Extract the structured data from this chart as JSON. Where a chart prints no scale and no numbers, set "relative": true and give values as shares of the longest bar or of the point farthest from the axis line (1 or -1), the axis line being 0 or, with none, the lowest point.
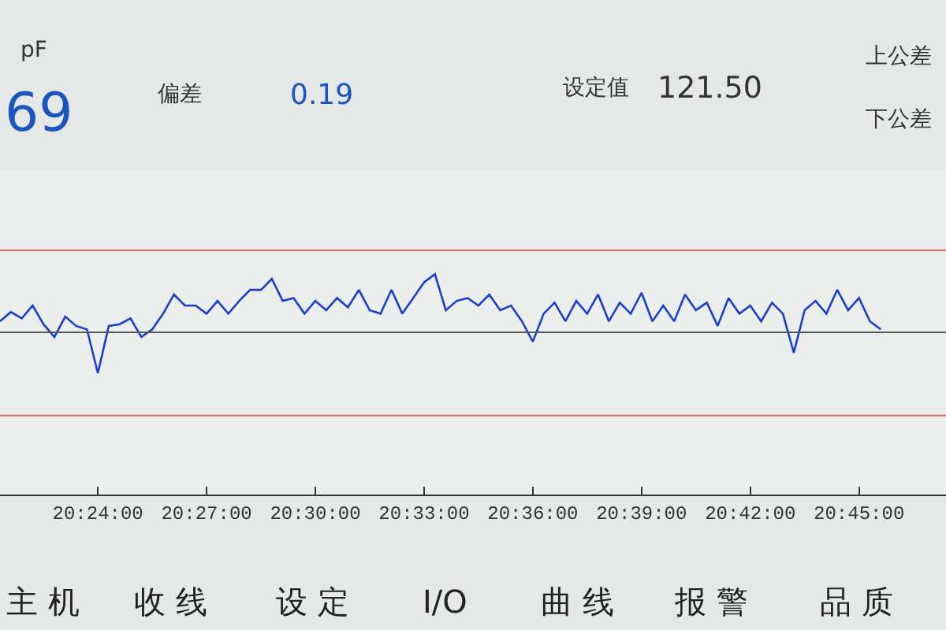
{
  "chart_data": {
    "type": "line",
    "relative": true,
    "grid": false,
    "marker": "none",
    "line_style": "solid",
    "annotations": [
      "pF",
      "69",
      "偏差",
      "0.19",
      "设定值",
      "121.50",
      "上公差",
      "下公差",
      "主 机",
      "收 线",
      "设 定",
      "I/O",
      "曲 线",
      "报 警",
      "品 质"
    ],
    "xlim": [
      20.355,
      20.79
    ],
    "xticks": [
      {
        "value": 20.4,
        "label": "20:24:00"
      },
      {
        "value": 20.45,
        "label": "20:27:00"
      },
      {
        "value": 20.5,
        "label": "20:30:00"
      },
      {
        "value": 20.55,
        "label": "20:33:00"
      },
      {
        "value": 20.6,
        "label": "20:36:00"
      },
      {
        "value": 20.65,
        "label": "20:39:00"
      },
      {
        "value": 20.7,
        "label": "20:42:00"
      },
      {
        "value": 20.75,
        "label": "20:45:00"
      }
    ],
    "ref_lines": [
      {
        "axis": "y",
        "value": 1.41,
        "color": "#e06666"
      },
      {
        "axis": "y",
        "value": 0,
        "color": "#555555"
      },
      {
        "axis": "y",
        "value": -1.43,
        "color": "#e06666"
      }
    ],
    "tick_labels": "x",
    "series": [
      {
        "color": "#1a3fd0",
        "x": [
          20.355,
          20.36,
          20.365,
          20.37,
          20.375,
          20.38,
          20.385,
          20.39,
          20.395,
          20.4,
          20.405,
          20.41,
          20.415,
          20.42,
          20.425,
          20.43,
          20.435,
          20.44,
          20.445,
          20.45,
          20.455,
          20.46,
          20.465,
          20.47,
          20.475,
          20.48,
          20.485,
          20.49,
          20.495,
          20.5,
          20.505,
          20.51,
          20.515,
          20.52,
          20.525,
          20.53,
          20.535,
          20.54,
          20.545,
          20.55,
          20.555,
          20.56,
          20.565,
          20.57,
          20.575,
          20.58,
          20.585,
          20.59,
          20.595,
          20.6,
          20.605,
          20.61,
          20.615,
          20.62,
          20.625,
          20.63,
          20.635,
          20.64,
          20.645,
          20.65,
          20.655,
          20.66,
          20.665,
          20.67,
          20.675,
          20.68,
          20.685,
          20.69,
          20.695,
          20.7,
          20.705,
          20.71,
          20.715,
          20.72,
          20.725,
          20.73,
          20.735,
          20.74,
          20.745,
          20.75,
          20.755,
          20.76
        ],
        "values": [
          0.19,
          0.35,
          0.24,
          0.46,
          0.14,
          -0.08,
          0.27,
          0.11,
          0.05,
          -0.7,
          0.11,
          0.14,
          0.24,
          -0.08,
          0.05,
          0.32,
          0.65,
          0.46,
          0.46,
          0.32,
          0.54,
          0.32,
          0.54,
          0.73,
          0.73,
          0.92,
          0.54,
          0.59,
          0.32,
          0.54,
          0.38,
          0.59,
          0.43,
          0.73,
          0.38,
          0.32,
          0.73,
          0.32,
          0.59,
          0.86,
          1,
          0.38,
          0.54,
          0.59,
          0.46,
          0.65,
          0.38,
          0.46,
          0.19,
          -0.16,
          0.32,
          0.51,
          0.19,
          0.54,
          0.32,
          0.65,
          0.19,
          0.51,
          0.32,
          0.68,
          0.19,
          0.46,
          0.19,
          0.65,
          0.38,
          0.51,
          0.11,
          0.59,
          0.32,
          0.46,
          0.19,
          0.51,
          0.32,
          -0.35,
          0.38,
          0.54,
          0.32,
          0.73,
          0.38,
          0.59,
          0.19,
          0.05
        ]
      }
    ]
  }
}
